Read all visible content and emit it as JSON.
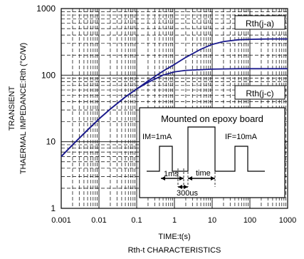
{
  "chart_data": {
    "type": "line",
    "title": "",
    "caption": "Rth-t CHARACTERISTICS",
    "xlabel": "TIME:t(s)",
    "ylabel_line1": "TRANSIENT",
    "ylabel_line2": "THAERMAL IMPEDANCE:Rth (°C/W)",
    "x_scale": "log",
    "y_scale": "log",
    "xlim": [
      0.001,
      1000
    ],
    "ylim": [
      1,
      1000
    ],
    "x_ticks": [
      "0.001",
      "0.01",
      "0.1",
      "1",
      "10",
      "100",
      "1000"
    ],
    "y_ticks": [
      "1",
      "10",
      "100",
      "1000"
    ],
    "grid": true,
    "series": [
      {
        "name": "Rth(j-a)",
        "x": [
          0.001,
          0.002,
          0.005,
          0.01,
          0.02,
          0.05,
          0.1,
          0.2,
          0.5,
          1,
          2,
          5,
          10,
          20,
          50,
          100,
          200,
          500,
          1000
        ],
        "y": [
          6,
          9,
          15,
          22,
          31,
          47,
          62,
          82,
          115,
          145,
          185,
          245,
          290,
          320,
          340,
          345,
          348,
          350,
          350
        ]
      },
      {
        "name": "Rth(j-c)",
        "x": [
          0.001,
          0.002,
          0.005,
          0.01,
          0.02,
          0.05,
          0.1,
          0.2,
          0.5,
          1,
          2,
          5,
          10,
          20,
          50,
          100,
          200,
          500,
          1000
        ],
        "y": [
          6,
          9,
          15,
          22,
          31,
          47,
          62,
          78,
          100,
          112,
          118,
          121,
          123,
          124,
          125,
          125,
          125,
          125,
          125
        ]
      }
    ],
    "inset": {
      "title": "Mounted on epoxy board",
      "left_label": "IM=1mA",
      "right_label": "IF=10mA",
      "dim_1": "1ms",
      "dim_2": "time",
      "dim_3": "300us"
    }
  },
  "colors": {
    "curve": "#1a1a8c",
    "grid": "#000000"
  }
}
